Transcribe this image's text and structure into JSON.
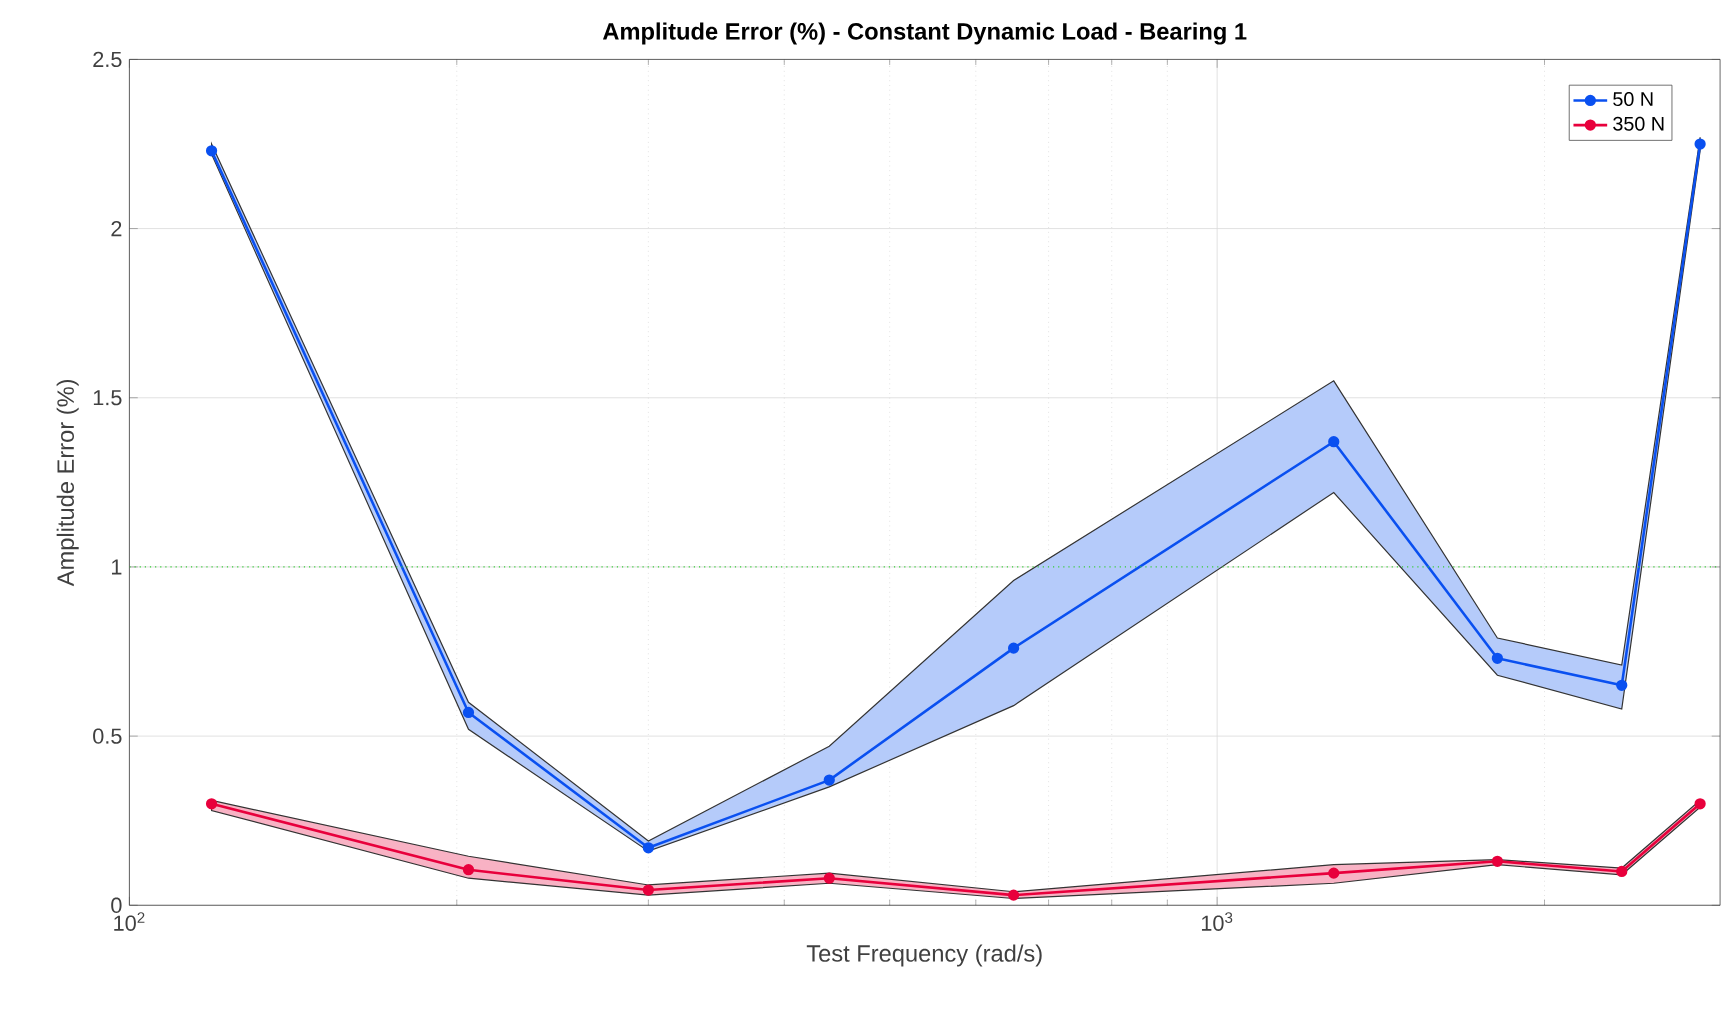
{
  "chart_data": {
    "type": "line",
    "title": "Amplitude Error (%) - Constant Dynamic Load - Bearing 1",
    "xlabel": "Test Frequency (rad/s)",
    "ylabel": "Amplitude Error (%)",
    "x": [
      119,
      205,
      300,
      440,
      650,
      1280,
      1810,
      2355,
      2780
    ],
    "series": [
      {
        "name": "50 N",
        "color": "#0a50f0",
        "values": [
          2.23,
          0.57,
          0.17,
          0.37,
          0.76,
          1.37,
          0.73,
          0.65,
          2.25
        ],
        "lower": [
          2.22,
          0.52,
          0.16,
          0.35,
          0.59,
          1.22,
          0.68,
          0.58,
          2.23
        ],
        "upper": [
          2.25,
          0.6,
          0.19,
          0.47,
          0.96,
          1.55,
          0.79,
          0.71,
          2.27
        ]
      },
      {
        "name": "350 N",
        "color": "#e8003c",
        "values": [
          0.3,
          0.105,
          0.045,
          0.08,
          0.03,
          0.095,
          0.13,
          0.1,
          0.3
        ],
        "lower": [
          0.28,
          0.08,
          0.03,
          0.065,
          0.02,
          0.065,
          0.12,
          0.09,
          0.29
        ],
        "upper": [
          0.31,
          0.145,
          0.06,
          0.095,
          0.04,
          0.12,
          0.135,
          0.11,
          0.31
        ]
      }
    ],
    "log": "x",
    "xlim": [
      100,
      2900
    ],
    "ylim": [
      0,
      2.5
    ],
    "xticks": [
      {
        "value": 100,
        "label": "10$^{2}$"
      },
      {
        "value": 1000,
        "label": "10$^{3}$"
      }
    ],
    "yticks": [
      0,
      0.5,
      1,
      1.5,
      2,
      2.5
    ],
    "ref_lines": [
      {
        "axis": "y",
        "value": 1,
        "color": "#33cc33",
        "line_style": "dotted"
      }
    ],
    "grid": true,
    "legend": "top right",
    "marker": "circle",
    "line_style": "solid"
  }
}
